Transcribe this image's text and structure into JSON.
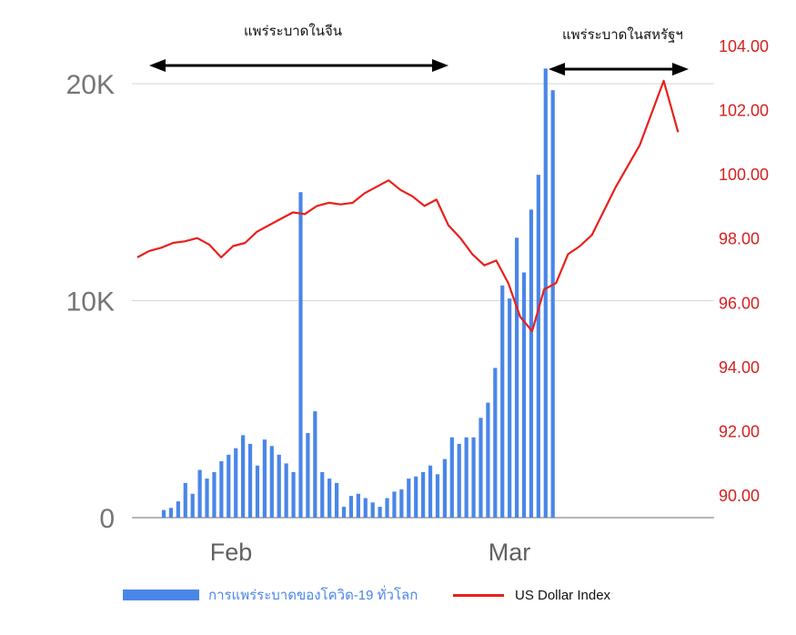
{
  "chart_data": {
    "type": "bar+line",
    "annotations": [
      "แพร่ระบาดในจีน",
      "แพร่ระบาดในสหรัฐฯ"
    ],
    "x_tick_labels": [
      "Feb",
      "Mar"
    ],
    "left_axis": {
      "ticks": [
        "0",
        "10K",
        "20K"
      ],
      "ylim": [
        0,
        21000
      ]
    },
    "right_axis": {
      "ticks": [
        "90.00",
        "92.00",
        "94.00",
        "96.00",
        "98.00",
        "100.00",
        "102.00",
        "104.00"
      ],
      "ylim": [
        89.2,
        104.3
      ]
    },
    "series": [
      {
        "name": "การแพร่ระบาดของโควิด-19 ทั่วโลก",
        "type": "bar",
        "axis": "left",
        "color": "#4a86e8",
        "values": [
          350,
          450,
          750,
          1600,
          1100,
          2200,
          1800,
          2100,
          2600,
          2900,
          3200,
          3800,
          3400,
          2400,
          3600,
          3300,
          2900,
          2500,
          2100,
          15000,
          3900,
          4900,
          2100,
          1800,
          1600,
          500,
          1000,
          1100,
          900,
          700,
          500,
          900,
          1200,
          1300,
          1800,
          1900,
          2100,
          2400,
          2000,
          2700,
          3700,
          3400,
          3700,
          3700,
          4600,
          5300,
          6900,
          10700,
          10100,
          12900,
          11300,
          14200,
          15800,
          20700,
          19700
        ]
      },
      {
        "name": "US Dollar Index",
        "type": "line",
        "axis": "right",
        "color": "#e8201c",
        "values": [
          97.4,
          97.6,
          97.7,
          97.85,
          97.9,
          98.0,
          97.8,
          97.4,
          97.75,
          97.85,
          98.2,
          98.4,
          98.6,
          98.8,
          98.75,
          99.0,
          99.1,
          99.05,
          99.1,
          99.4,
          99.6,
          99.8,
          99.5,
          99.3,
          99.0,
          99.2,
          98.4,
          98.0,
          97.5,
          97.15,
          97.3,
          96.6,
          95.55,
          95.1,
          96.4,
          96.6,
          97.5,
          97.75,
          98.1,
          99.6,
          100.9,
          102.9,
          101.3
        ],
        "x_positions": [
          0,
          1,
          2,
          3,
          4,
          5,
          6,
          7,
          8,
          9,
          10,
          11,
          12,
          13,
          14,
          15,
          16,
          17,
          18,
          19,
          20,
          21,
          22,
          23,
          24,
          25,
          26,
          27,
          28,
          29,
          30,
          31,
          32,
          33,
          34,
          35,
          36,
          37,
          38,
          40,
          42,
          44,
          45.2
        ]
      }
    ]
  }
}
